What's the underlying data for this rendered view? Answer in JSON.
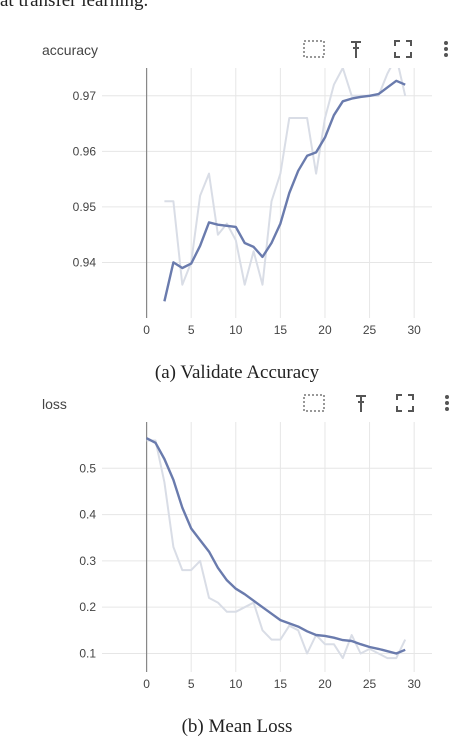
{
  "header_text": "at transfer learning.",
  "charts": [
    {
      "title": "accuracy",
      "caption": "(a) Validate Accuracy",
      "toolbar": {
        "icons": [
          "select-region-icon",
          "pin-icon",
          "fullscreen-icon",
          "more-vert-icon"
        ]
      }
    },
    {
      "title": "loss",
      "caption": "(b) Mean Loss",
      "toolbar": {
        "icons": [
          "select-region-icon",
          "pin-icon",
          "fullscreen-icon",
          "more-vert-icon"
        ]
      }
    }
  ],
  "chart_data": [
    {
      "type": "line",
      "title": "accuracy",
      "xlim": [
        -5,
        32
      ],
      "ylim": [
        0.93,
        0.975
      ],
      "xticks": [
        0,
        5,
        10,
        15,
        20,
        25,
        30
      ],
      "yticks": [
        0.94,
        0.95,
        0.96,
        0.97
      ],
      "ytick_labels": [
        "0.94",
        "0.95",
        "0.96",
        "0.97"
      ],
      "series": [
        {
          "style": "raw",
          "color": "#d9dde6",
          "x": [
            2,
            3,
            4,
            5,
            6,
            7,
            8,
            9,
            10,
            11,
            12,
            13,
            14,
            15,
            16,
            17,
            18,
            19,
            20,
            21,
            22,
            23,
            24,
            25,
            26,
            27,
            28,
            29
          ],
          "y": [
            0.951,
            0.951,
            0.936,
            0.94,
            0.952,
            0.956,
            0.945,
            0.947,
            0.944,
            0.936,
            0.942,
            0.936,
            0.951,
            0.956,
            0.966,
            0.966,
            0.966,
            0.956,
            0.966,
            0.972,
            0.975,
            0.97,
            0.97,
            0.97,
            0.97,
            0.974,
            0.977,
            0.97
          ]
        },
        {
          "style": "smoothed",
          "color": "#6a7bad",
          "x": [
            2,
            3,
            4,
            5,
            6,
            7,
            8,
            9,
            10,
            11,
            12,
            13,
            14,
            15,
            16,
            17,
            18,
            19,
            20,
            21,
            22,
            23,
            24,
            25,
            26,
            27,
            28,
            29
          ],
          "y": [
            0.933,
            0.94,
            0.939,
            0.9398,
            0.943,
            0.9472,
            0.9468,
            0.9466,
            0.9464,
            0.9435,
            0.9428,
            0.941,
            0.9435,
            0.947,
            0.9525,
            0.9565,
            0.9592,
            0.9598,
            0.9625,
            0.9665,
            0.969,
            0.9695,
            0.9698,
            0.97,
            0.9703,
            0.9715,
            0.9727,
            0.972
          ]
        }
      ]
    },
    {
      "type": "line",
      "title": "loss",
      "xlim": [
        -5,
        32
      ],
      "ylim": [
        0.06,
        0.6
      ],
      "xticks": [
        0,
        5,
        10,
        15,
        20,
        25,
        30
      ],
      "yticks": [
        0.1,
        0.2,
        0.3,
        0.4,
        0.5
      ],
      "ytick_labels": [
        "0.1",
        "0.2",
        "0.3",
        "0.4",
        "0.5"
      ],
      "series": [
        {
          "style": "raw",
          "color": "#d9dde6",
          "x": [
            0,
            1,
            2,
            3,
            4,
            5,
            6,
            7,
            8,
            9,
            10,
            11,
            12,
            13,
            14,
            15,
            16,
            17,
            18,
            19,
            20,
            21,
            22,
            23,
            24,
            25,
            26,
            27,
            28,
            29
          ],
          "y": [
            0.56,
            0.56,
            0.47,
            0.33,
            0.28,
            0.28,
            0.3,
            0.22,
            0.21,
            0.19,
            0.19,
            0.2,
            0.21,
            0.15,
            0.13,
            0.13,
            0.16,
            0.15,
            0.1,
            0.14,
            0.12,
            0.12,
            0.09,
            0.14,
            0.1,
            0.11,
            0.1,
            0.09,
            0.09,
            0.13
          ]
        },
        {
          "style": "smoothed",
          "color": "#6a7bad",
          "x": [
            0,
            1,
            2,
            3,
            4,
            5,
            6,
            7,
            8,
            9,
            10,
            11,
            12,
            13,
            14,
            15,
            16,
            17,
            18,
            19,
            20,
            21,
            22,
            23,
            24,
            25,
            26,
            27,
            28,
            29
          ],
          "y": [
            0.565,
            0.555,
            0.52,
            0.475,
            0.415,
            0.37,
            0.345,
            0.32,
            0.285,
            0.258,
            0.24,
            0.228,
            0.214,
            0.2,
            0.186,
            0.172,
            0.165,
            0.158,
            0.148,
            0.14,
            0.138,
            0.134,
            0.129,
            0.127,
            0.12,
            0.114,
            0.11,
            0.105,
            0.1,
            0.108
          ]
        }
      ]
    }
  ]
}
